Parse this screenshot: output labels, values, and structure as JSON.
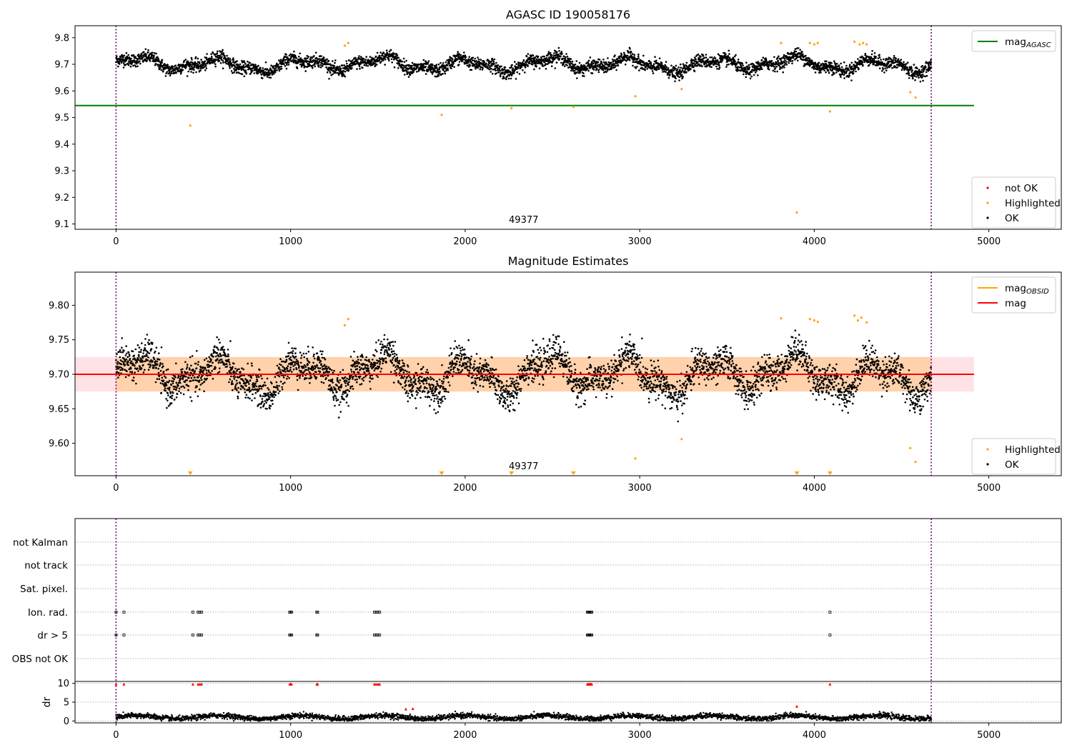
{
  "chart_data": [
    {
      "type": "scatter",
      "title": "AGASC ID 190058176",
      "x_ticks": [
        "0",
        "1000",
        "2000",
        "3000",
        "4000",
        "5000"
      ],
      "y_ticks": [
        "9.1",
        "9.2",
        "9.3",
        "9.4",
        "9.5",
        "9.6",
        "9.7",
        "9.8"
      ],
      "xlim": [
        -235,
        5415
      ],
      "ylim": [
        9.08,
        9.845
      ],
      "vlines_x": [
        0,
        4670
      ],
      "mag_agasc": 9.545,
      "mag_agasc_span_x": [
        -235,
        4915
      ],
      "annotation": "49377",
      "ok_series": {
        "name": "OK",
        "color": "#000000",
        "x_range": [
          0,
          4670
        ],
        "mean": 9.7,
        "amplitude": 0.03,
        "scatter": 0.012,
        "count": 4000
      },
      "highlighted": {
        "name": "Highlighted",
        "color": "#ffa500",
        "points": [
          [
            425,
            9.47
          ],
          [
            1865,
            9.51
          ],
          [
            2265,
            9.535
          ],
          [
            2620,
            9.54
          ],
          [
            2975,
            9.58
          ],
          [
            3240,
            9.607
          ],
          [
            3810,
            9.78
          ],
          [
            3900,
            9.143
          ],
          [
            3975,
            9.78
          ],
          [
            4000,
            9.775
          ],
          [
            4020,
            9.78
          ],
          [
            4090,
            9.523
          ],
          [
            4230,
            9.785
          ],
          [
            4260,
            9.775
          ],
          [
            4280,
            9.78
          ],
          [
            4300,
            9.775
          ],
          [
            4550,
            9.595
          ],
          [
            4580,
            9.575
          ],
          [
            1310,
            9.77
          ],
          [
            1330,
            9.78
          ]
        ]
      },
      "legend_upper": [
        {
          "label": "mag",
          "sub": "AGASC",
          "color": "#008000",
          "kind": "line"
        }
      ],
      "legend_lower": [
        {
          "label": "not OK",
          "color": "#ff0000",
          "kind": "dot"
        },
        {
          "label": "Highlighted",
          "color": "#ffa500",
          "kind": "dot"
        },
        {
          "label": "OK",
          "color": "#000000",
          "kind": "dot"
        }
      ]
    },
    {
      "type": "scatter",
      "title": "Magnitude Estimates",
      "x_ticks": [
        "0",
        "1000",
        "2000",
        "3000",
        "4000",
        "5000"
      ],
      "y_ticks": [
        "9.60",
        "9.65",
        "9.70",
        "9.75",
        "9.80"
      ],
      "xlim": [
        -235,
        5415
      ],
      "ylim": [
        9.553,
        9.848
      ],
      "vlines_x": [
        0,
        4670
      ],
      "mag": 9.7,
      "band": [
        9.675,
        9.725
      ],
      "band_span_x": [
        -235,
        4915
      ],
      "annotation": "49377",
      "ok_series": {
        "name": "OK",
        "color": "#000000",
        "x_range": [
          0,
          4670
        ],
        "mean": 9.7,
        "amplitude": 0.03,
        "scatter": 0.012,
        "count": 4000
      },
      "highlighted": {
        "name": "Highlighted",
        "color": "#ffa500",
        "points": [
          [
            1310,
            9.771
          ],
          [
            1330,
            9.78
          ],
          [
            2975,
            9.578
          ],
          [
            3240,
            9.606
          ],
          [
            3810,
            9.781
          ],
          [
            3975,
            9.78
          ],
          [
            4000,
            9.778
          ],
          [
            4020,
            9.776
          ],
          [
            4230,
            9.785
          ],
          [
            4250,
            9.778
          ],
          [
            4270,
            9.782
          ],
          [
            4300,
            9.775
          ],
          [
            4550,
            9.593
          ],
          [
            4580,
            9.573
          ]
        ],
        "below_range_x": [
          425,
          1865,
          2265,
          2620,
          3900,
          4090
        ]
      },
      "legend_upper": [
        {
          "label": "mag",
          "sub": "OBSID",
          "color": "#ffa500",
          "kind": "line"
        },
        {
          "label": "mag",
          "sub": "",
          "color": "#ff0000",
          "kind": "line"
        }
      ],
      "legend_lower": [
        {
          "label": "Highlighted",
          "color": "#ffa500",
          "kind": "dot"
        },
        {
          "label": "OK",
          "color": "#000000",
          "kind": "dot"
        }
      ]
    },
    {
      "type": "scatter",
      "categories": [
        "not Kalman",
        "not track",
        "Sat. pixel.",
        "Ion. rad.",
        "dr > 5",
        "OBS not OK"
      ],
      "flag_x": [
        0,
        45,
        440,
        470,
        480,
        490,
        995,
        1000,
        1005,
        1150,
        1155,
        1480,
        1490,
        1500,
        1510,
        2700,
        2705,
        2710,
        2715,
        2720,
        2725,
        4090
      ],
      "flag_rows": [
        "Ion. rad.",
        "dr > 5"
      ],
      "vlines_x": [
        0,
        4670
      ]
    },
    {
      "type": "scatter",
      "ylabel": "dr",
      "x_ticks": [
        "0",
        "1000",
        "2000",
        "3000",
        "4000",
        "5000"
      ],
      "y_ticks": [
        "0",
        "5",
        "10"
      ],
      "xlim": [
        -235,
        5415
      ],
      "ylim": [
        -0.5,
        10.5
      ],
      "vlines_x": [
        0,
        4670
      ],
      "dr_series": {
        "color": "#000000",
        "x_range": [
          0,
          4670
        ],
        "mean": 1.0,
        "scatter": 0.35,
        "count": 3500
      },
      "red_points": [
        [
          0,
          9.8
        ],
        [
          45,
          9.8
        ],
        [
          440,
          9.8
        ],
        [
          470,
          9.8
        ],
        [
          480,
          9.8
        ],
        [
          490,
          9.8
        ],
        [
          995,
          9.8
        ],
        [
          1000,
          9.8
        ],
        [
          1005,
          9.8
        ],
        [
          1150,
          9.8
        ],
        [
          1155,
          9.8
        ],
        [
          1480,
          9.8
        ],
        [
          1490,
          9.8
        ],
        [
          1500,
          9.8
        ],
        [
          1510,
          9.8
        ],
        [
          2700,
          9.8
        ],
        [
          2705,
          9.8
        ],
        [
          2710,
          9.8
        ],
        [
          2715,
          9.8
        ],
        [
          2720,
          9.8
        ],
        [
          2725,
          9.8
        ],
        [
          4090,
          9.8
        ],
        [
          1660,
          3.2
        ],
        [
          1700,
          3.3
        ],
        [
          3900,
          3.9
        ]
      ]
    }
  ]
}
